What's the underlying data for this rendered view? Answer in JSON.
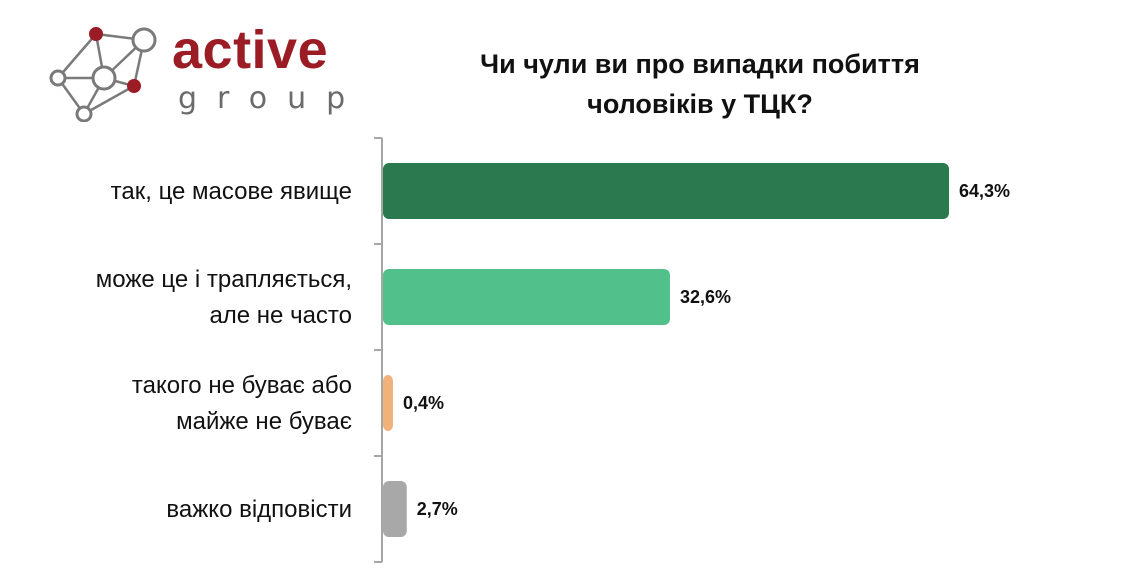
{
  "logo": {
    "word": "active",
    "sub": "group",
    "color_primary": "#9b1c24",
    "color_secondary": "#6b6b6b"
  },
  "title": "Чи чули ви про випадки побиття\nчоловіків у ТЦК?",
  "chart_data": {
    "type": "bar",
    "orientation": "horizontal",
    "title": "Чи чули ви про випадки побиття\nчоловіків у ТЦК?",
    "categories": [
      "так, це масове явище",
      "може це і трапляється, але не часто",
      "такого не буває або майже не буває",
      "важко відповісти"
    ],
    "category_lines": [
      [
        "так, це масове явище"
      ],
      [
        "може це і трапляється,",
        "але не часто"
      ],
      [
        "такого не буває або",
        "майже не буває"
      ],
      [
        "важко відповісти"
      ]
    ],
    "values": [
      64.3,
      32.6,
      0.4,
      2.7
    ],
    "value_labels": [
      "64,3%",
      "32,6%",
      "0,4%",
      "2,7%"
    ],
    "colors": [
      "#2b7a4f",
      "#52c08a",
      "#f0b27a",
      "#a8a8a8"
    ],
    "xlim": [
      0,
      65
    ],
    "grid": false,
    "legend": "none"
  }
}
